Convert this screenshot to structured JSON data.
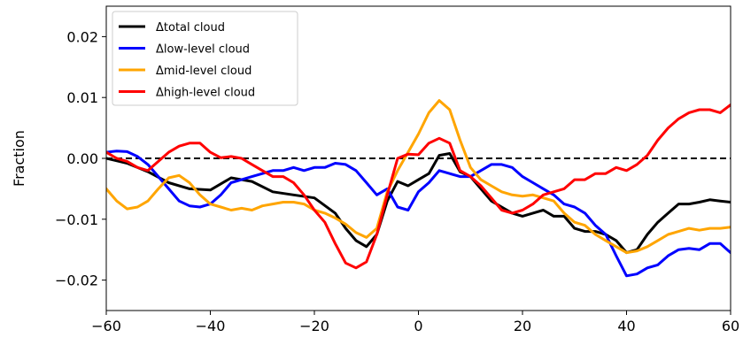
{
  "chart_data": {
    "type": "line",
    "title": "",
    "xlabel": "",
    "ylabel": "Fraction",
    "xlim": [
      -60,
      60
    ],
    "ylim": [
      -0.025,
      0.025
    ],
    "x_ticks": [
      -60,
      -40,
      -20,
      0,
      20,
      40,
      60
    ],
    "x_tick_labels": [
      "−60",
      "−40",
      "−20",
      "0",
      "20",
      "40",
      "60"
    ],
    "y_ticks": [
      -0.02,
      -0.01,
      0.0,
      0.01,
      0.02
    ],
    "y_tick_labels": [
      "−0.02",
      "−0.01",
      "0.00",
      "0.01",
      "0.02"
    ],
    "grid": false,
    "legend_position": "top-left",
    "reference_line": {
      "y": 0.0,
      "style": "dashed",
      "color": "#000000"
    },
    "series": [
      {
        "name": "Δtotal cloud",
        "color": "#000000",
        "x": [
          -60,
          -56,
          -52,
          -48,
          -44,
          -40,
          -36,
          -32,
          -28,
          -24,
          -20,
          -16,
          -14,
          -12,
          -10,
          -8,
          -6,
          -4,
          -2,
          0,
          2,
          4,
          6,
          8,
          10,
          12,
          14,
          16,
          18,
          20,
          22,
          24,
          26,
          28,
          30,
          32,
          34,
          36,
          38,
          40,
          42,
          44,
          46,
          48,
          50,
          52,
          54,
          56,
          58,
          60
        ],
        "y": [
          0.0,
          -0.0008,
          -0.0022,
          -0.004,
          -0.005,
          -0.0052,
          -0.0032,
          -0.0038,
          -0.0055,
          -0.006,
          -0.0065,
          -0.009,
          -0.0115,
          -0.0135,
          -0.0145,
          -0.0125,
          -0.007,
          -0.0038,
          -0.0045,
          -0.0035,
          -0.0025,
          0.0005,
          0.0008,
          -0.0022,
          -0.003,
          -0.005,
          -0.007,
          -0.008,
          -0.009,
          -0.0095,
          -0.009,
          -0.0085,
          -0.0095,
          -0.0095,
          -0.0115,
          -0.012,
          -0.012,
          -0.0125,
          -0.0135,
          -0.0155,
          -0.015,
          -0.0125,
          -0.0105,
          -0.009,
          -0.0075,
          -0.0075,
          -0.0072,
          -0.0068,
          -0.007,
          -0.0072
        ]
      },
      {
        "name": "Δlow-level cloud",
        "color": "#0000ff",
        "x": [
          -60,
          -58,
          -56,
          -54,
          -52,
          -50,
          -48,
          -46,
          -44,
          -42,
          -40,
          -38,
          -36,
          -34,
          -32,
          -30,
          -28,
          -26,
          -24,
          -22,
          -20,
          -18,
          -16,
          -14,
          -12,
          -10,
          -8,
          -6,
          -4,
          -2,
          0,
          2,
          4,
          6,
          8,
          10,
          12,
          14,
          16,
          18,
          20,
          22,
          24,
          26,
          28,
          30,
          32,
          34,
          36,
          38,
          40,
          42,
          44,
          46,
          48,
          50,
          52,
          54,
          56,
          58,
          60
        ],
        "y": [
          0.001,
          0.0012,
          0.0011,
          0.0003,
          -0.001,
          -0.003,
          -0.005,
          -0.007,
          -0.0078,
          -0.008,
          -0.0075,
          -0.006,
          -0.004,
          -0.0035,
          -0.003,
          -0.0025,
          -0.002,
          -0.002,
          -0.0015,
          -0.002,
          -0.0015,
          -0.0015,
          -0.0008,
          -0.001,
          -0.002,
          -0.004,
          -0.006,
          -0.005,
          -0.008,
          -0.0085,
          -0.0055,
          -0.004,
          -0.002,
          -0.0025,
          -0.003,
          -0.003,
          -0.002,
          -0.001,
          -0.001,
          -0.0015,
          -0.003,
          -0.004,
          -0.005,
          -0.006,
          -0.0075,
          -0.008,
          -0.009,
          -0.011,
          -0.0125,
          -0.016,
          -0.0193,
          -0.019,
          -0.018,
          -0.0175,
          -0.016,
          -0.015,
          -0.0148,
          -0.015,
          -0.014,
          -0.014,
          -0.0155
        ]
      },
      {
        "name": "Δmid-level cloud",
        "color": "#ffa500",
        "x": [
          -60,
          -58,
          -56,
          -54,
          -52,
          -50,
          -48,
          -46,
          -44,
          -42,
          -40,
          -38,
          -36,
          -34,
          -32,
          -30,
          -28,
          -26,
          -24,
          -22,
          -20,
          -18,
          -16,
          -14,
          -12,
          -10,
          -8,
          -6,
          -4,
          -2,
          0,
          2,
          4,
          6,
          8,
          10,
          12,
          14,
          16,
          18,
          20,
          22,
          24,
          26,
          28,
          30,
          32,
          34,
          36,
          38,
          40,
          42,
          44,
          46,
          48,
          50,
          52,
          54,
          56,
          58,
          60
        ],
        "y": [
          -0.005,
          -0.007,
          -0.0083,
          -0.008,
          -0.007,
          -0.005,
          -0.0032,
          -0.0028,
          -0.004,
          -0.006,
          -0.0075,
          -0.008,
          -0.0085,
          -0.0082,
          -0.0085,
          -0.0078,
          -0.0075,
          -0.0072,
          -0.0072,
          -0.0075,
          -0.0085,
          -0.009,
          -0.0098,
          -0.0108,
          -0.0122,
          -0.013,
          -0.0115,
          -0.0055,
          -0.002,
          0.001,
          0.004,
          0.0075,
          0.0095,
          0.008,
          0.003,
          -0.0015,
          -0.0035,
          -0.0045,
          -0.0055,
          -0.006,
          -0.0062,
          -0.006,
          -0.0065,
          -0.007,
          -0.009,
          -0.0105,
          -0.011,
          -0.0125,
          -0.0135,
          -0.0145,
          -0.0155,
          -0.0152,
          -0.0145,
          -0.0135,
          -0.0125,
          -0.012,
          -0.0115,
          -0.0118,
          -0.0115,
          -0.0115,
          -0.0113
        ]
      },
      {
        "name": "Δhigh-level cloud",
        "color": "#ff0000",
        "x": [
          -60,
          -58,
          -56,
          -54,
          -52,
          -50,
          -48,
          -46,
          -44,
          -42,
          -40,
          -38,
          -36,
          -34,
          -32,
          -30,
          -28,
          -26,
          -24,
          -22,
          -20,
          -18,
          -16,
          -14,
          -12,
          -10,
          -8,
          -6,
          -4,
          -2,
          0,
          2,
          4,
          6,
          8,
          10,
          12,
          14,
          16,
          18,
          20,
          22,
          24,
          26,
          28,
          30,
          32,
          34,
          36,
          38,
          40,
          42,
          44,
          46,
          48,
          50,
          52,
          54,
          56,
          58,
          60
        ],
        "y": [
          0.001,
          0.0,
          -0.0005,
          -0.0015,
          -0.002,
          -0.0005,
          0.001,
          0.002,
          0.0025,
          0.0025,
          0.001,
          0.0001,
          0.0003,
          0.0,
          -0.001,
          -0.002,
          -0.003,
          -0.003,
          -0.004,
          -0.006,
          -0.0085,
          -0.0105,
          -0.014,
          -0.0172,
          -0.018,
          -0.017,
          -0.0125,
          -0.006,
          0.0,
          0.0007,
          0.0006,
          0.0025,
          0.0033,
          0.0025,
          -0.002,
          -0.003,
          -0.0045,
          -0.0065,
          -0.0085,
          -0.009,
          -0.0085,
          -0.0075,
          -0.006,
          -0.0055,
          -0.005,
          -0.0035,
          -0.0035,
          -0.0025,
          -0.0025,
          -0.0015,
          -0.002,
          -0.001,
          0.0005,
          0.003,
          0.005,
          0.0065,
          0.0075,
          0.008,
          0.008,
          0.0075,
          0.0088
        ]
      }
    ]
  }
}
